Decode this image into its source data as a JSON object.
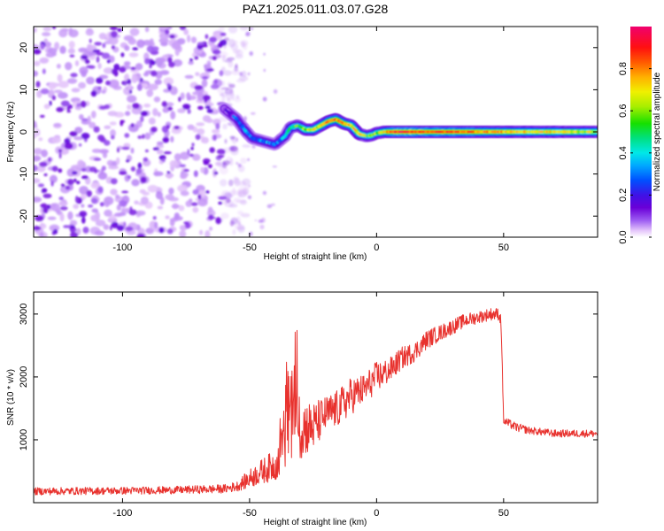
{
  "chart_data": [
    {
      "type": "heatmap",
      "title": "PAZ1.2025.011.03.07.G28",
      "xlabel": "Height of straight line (km)",
      "ylabel": "Frequency (Hz)",
      "xlim": [
        -135,
        87
      ],
      "ylim": [
        -25,
        25
      ],
      "xticks": [
        -100,
        -50,
        0,
        50
      ],
      "yticks": [
        -20,
        -10,
        0,
        10,
        20
      ],
      "colorbar": {
        "label": "Normalized spectral amplitude",
        "range": [
          0,
          1
        ],
        "ticks": [
          0.0,
          0.2,
          0.4,
          0.6,
          0.8
        ],
        "tick_labels": [
          "0.0",
          "0.2",
          "0.4",
          "0.6",
          "0.8"
        ],
        "colormap": "rainbow (purple - blue - cyan - green - yellow - orange - red - magenta)"
      },
      "noise_region": {
        "x_range": [
          -135,
          -55
        ],
        "y_range": [
          -25,
          25
        ],
        "typical_amplitude": 0.05
      },
      "ridge": {
        "x": [
          -60,
          -55,
          -52,
          -49,
          -46,
          -43,
          -40,
          -38,
          -36,
          -34,
          -31,
          -28,
          -25,
          -22,
          -19,
          -16,
          -13,
          -10,
          -7,
          -4,
          -2,
          0,
          3,
          6,
          10,
          20,
          30,
          40,
          50,
          60,
          70,
          80,
          87
        ],
        "y": [
          5.5,
          3.0,
          0.5,
          -1.5,
          -2.0,
          -2.5,
          -3.0,
          -2.0,
          -1.0,
          1.0,
          1.5,
          0.5,
          0.5,
          1.5,
          2.5,
          3.0,
          2.0,
          1.5,
          -0.5,
          -1.0,
          -0.8,
          -0.3,
          0.0,
          0.0,
          0.0,
          0.0,
          0.0,
          0.0,
          0.0,
          0.0,
          0.0,
          0.0,
          0.0
        ],
        "amplitude": [
          0.15,
          0.25,
          0.35,
          0.3,
          0.3,
          0.3,
          0.3,
          0.35,
          0.4,
          0.45,
          0.55,
          0.6,
          0.65,
          0.7,
          0.75,
          0.8,
          0.75,
          0.7,
          0.7,
          0.55,
          0.6,
          0.6,
          0.7,
          0.85,
          0.9,
          0.85,
          0.85,
          0.8,
          0.75,
          0.7,
          0.7,
          0.65,
          0.65
        ]
      }
    },
    {
      "type": "line",
      "xlabel": "Height of straight line (km)",
      "ylabel": "SNR (10 * v/v)",
      "xlim": [
        -135,
        87
      ],
      "ylim": [
        0,
        3350
      ],
      "xticks": [
        -100,
        -50,
        0,
        50
      ],
      "yticks": [
        1000,
        2000,
        3000
      ],
      "color": "#e8322e",
      "series": [
        {
          "x": [
            -135,
            -120,
            -100,
            -80,
            -60,
            -55,
            -50,
            -45,
            -40,
            -38,
            -35,
            -32,
            -30,
            -25,
            -20,
            -15,
            -10,
            -5,
            0,
            5,
            10,
            15,
            20,
            25,
            30,
            35,
            40,
            45,
            48,
            49,
            50,
            55,
            60,
            70,
            80,
            87
          ],
          "values": [
            180,
            185,
            190,
            200,
            220,
            260,
            380,
            500,
            600,
            700,
            1300,
            1500,
            1200,
            1200,
            1400,
            1500,
            1700,
            1800,
            2000,
            2100,
            2300,
            2400,
            2600,
            2700,
            2800,
            2900,
            2950,
            3000,
            3000,
            2900,
            1300,
            1200,
            1150,
            1100,
            1100,
            1100
          ],
          "noise_amplitude": [
            60,
            60,
            60,
            60,
            70,
            80,
            150,
            200,
            250,
            300,
            800,
            700,
            500,
            400,
            300,
            300,
            300,
            250,
            250,
            200,
            180,
            160,
            150,
            130,
            120,
            110,
            100,
            100,
            100,
            100,
            70,
            70,
            60,
            60,
            60,
            60
          ]
        }
      ]
    }
  ]
}
